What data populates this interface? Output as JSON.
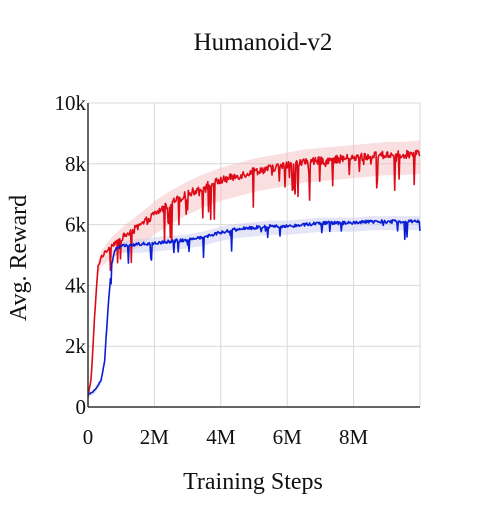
{
  "chart_data": {
    "type": "line",
    "title": "Humanoid-v2",
    "xlabel": "Training Steps",
    "ylabel": "Avg. Reward",
    "xlim": [
      0,
      10000000
    ],
    "ylim": [
      0,
      10000
    ],
    "x_ticks": [
      0,
      2000000,
      4000000,
      6000000,
      8000000
    ],
    "x_tick_labels": [
      "0",
      "2M",
      "4M",
      "6M",
      "8M"
    ],
    "y_ticks": [
      0,
      2000,
      4000,
      6000,
      8000,
      10000
    ],
    "y_tick_labels": [
      "0",
      "2k",
      "4k",
      "6k",
      "8k",
      "10k"
    ],
    "grid": true,
    "legend": "none",
    "series": [
      {
        "color": "#dd0a17",
        "band_color": "#f5b9bd",
        "x": [
          0,
          100000,
          200000,
          300000,
          400000,
          500000,
          600000,
          800000,
          1000000,
          1200000,
          1500000,
          1800000,
          2000000,
          2500000,
          3000000,
          3500000,
          4000000,
          4500000,
          5000000,
          5500000,
          6000000,
          6500000,
          7000000,
          7500000,
          8000000,
          8500000,
          9000000,
          9500000,
          10000000
        ],
        "values": [
          300,
          1000,
          3000,
          4600,
          4950,
          5050,
          5200,
          5400,
          5550,
          5700,
          5900,
          6150,
          6350,
          6700,
          7000,
          7250,
          7450,
          7600,
          7750,
          7850,
          7950,
          8050,
          8100,
          8150,
          8200,
          8250,
          8300,
          8300,
          8350
        ]
      },
      {
        "color": "#0a1ed6",
        "band_color": "#c4c8f0",
        "x": [
          0,
          200000,
          400000,
          500000,
          600000,
          700000,
          800000,
          900000,
          1000000,
          1500000,
          2000000,
          2500000,
          3000000,
          3500000,
          4000000,
          4500000,
          5000000,
          5500000,
          6000000,
          6500000,
          7000000,
          7500000,
          8000000,
          8500000,
          9000000,
          9500000,
          10000000
        ],
        "values": [
          400,
          550,
          900,
          1500,
          3200,
          4600,
          5150,
          5250,
          5300,
          5350,
          5400,
          5450,
          5500,
          5600,
          5750,
          5850,
          5900,
          5950,
          5950,
          6000,
          6050,
          6050,
          6050,
          6100,
          6100,
          6100,
          6100
        ]
      }
    ]
  }
}
